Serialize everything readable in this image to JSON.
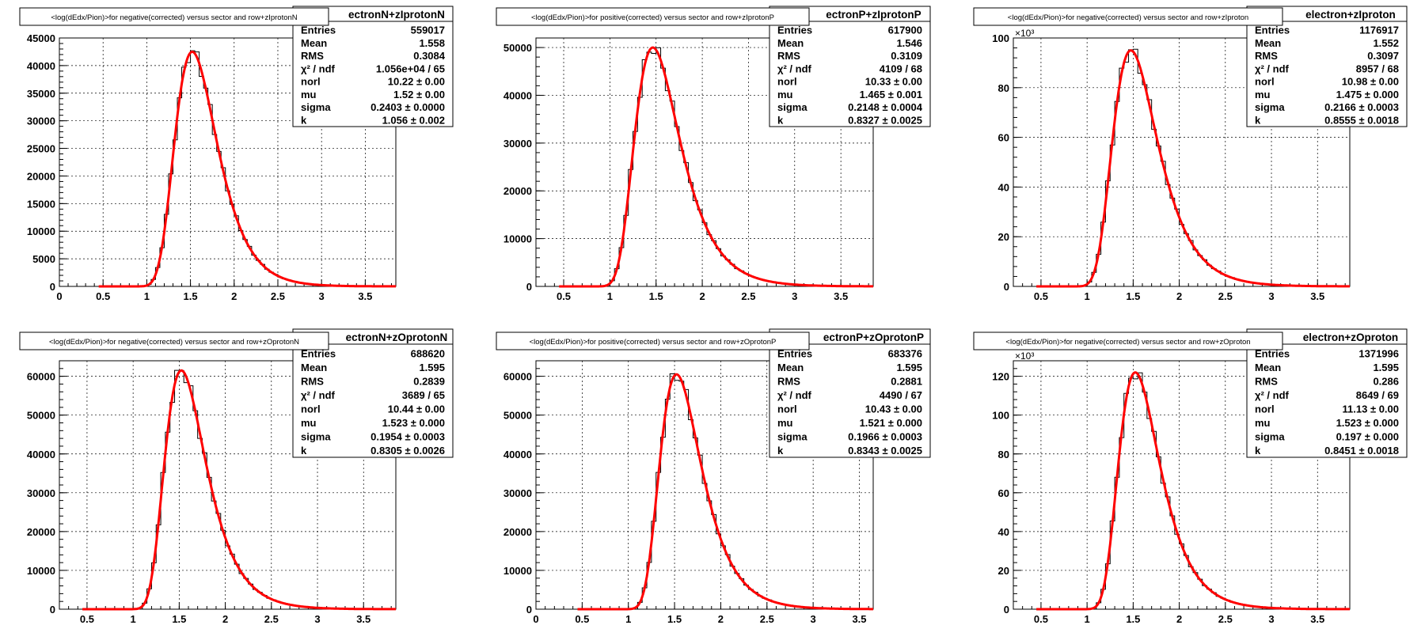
{
  "canvas": {
    "background": "#ffffff"
  },
  "colors": {
    "fit": "#ff0000",
    "hist": "#000000",
    "grid": "#000000"
  },
  "chart_data": [
    {
      "type": "line",
      "title": "<log(dEdx/Pion)>for negative(corrected) versus sector and row+zIprotonN",
      "hist_name": "ectronN+zIprotonN",
      "xlim": [
        0,
        3.85
      ],
      "ylim": [
        0,
        45000
      ],
      "xticks": [
        0,
        0.5,
        1,
        1.5,
        2,
        2.5,
        3,
        3.5
      ],
      "xtick_labels": [
        "0",
        "0.5",
        "1",
        "1.5",
        "2",
        "2.5",
        "3",
        "3.5"
      ],
      "yticks": [
        0,
        5000,
        10000,
        15000,
        20000,
        25000,
        30000,
        35000,
        40000,
        45000
      ],
      "ytick_labels": [
        "0",
        "5000",
        "10000",
        "15000",
        "20000",
        "25000",
        "30000",
        "35000",
        "40000",
        "45000"
      ],
      "y_exponent": "",
      "bin_width": 0.05,
      "fit": {
        "amplitude": 42500,
        "mu": 1.52,
        "sigma": 0.2403,
        "k": 1.056
      },
      "stats": [
        {
          "name": "Entries",
          "value": "559017"
        },
        {
          "name": "Mean",
          "value": "1.558"
        },
        {
          "name": "RMS",
          "value": "0.3084"
        },
        {
          "name": "χ² / ndf",
          "value": "1.056e+04 / 65"
        },
        {
          "name": "norl",
          "value": "10.22 ± 0.00"
        },
        {
          "name": "mu",
          "value": "1.52 ± 0.00"
        },
        {
          "name": "sigma",
          "value": "0.2403 ± 0.0000"
        },
        {
          "name": "k",
          "value": "1.056 ± 0.002"
        }
      ]
    },
    {
      "type": "line",
      "title": "<log(dEdx/Pion)>for positive(corrected) versus sector and row+zIprotonP",
      "hist_name": "ectronP+zIprotonP",
      "xlim": [
        0.2,
        3.85
      ],
      "ylim": [
        0,
        52000
      ],
      "xticks": [
        0.5,
        1,
        1.5,
        2,
        2.5,
        3,
        3.5
      ],
      "xtick_labels": [
        "0.5",
        "1",
        "1.5",
        "2",
        "2.5",
        "3",
        "3.5"
      ],
      "yticks": [
        0,
        10000,
        20000,
        30000,
        40000,
        50000
      ],
      "ytick_labels": [
        "0",
        "10000",
        "20000",
        "30000",
        "40000",
        "50000"
      ],
      "y_exponent": "",
      "bin_width": 0.05,
      "fit": {
        "amplitude": 50000,
        "mu": 1.465,
        "sigma": 0.2148,
        "k": 0.8327
      },
      "stats": [
        {
          "name": "Entries",
          "value": "617900"
        },
        {
          "name": "Mean",
          "value": "1.546"
        },
        {
          "name": "RMS",
          "value": "0.3109"
        },
        {
          "name": "χ² / ndf",
          "value": "4109 / 68"
        },
        {
          "name": "norl",
          "value": "10.33 ± 0.00"
        },
        {
          "name": "mu",
          "value": "1.465 ± 0.001"
        },
        {
          "name": "sigma",
          "value": "0.2148 ± 0.0004"
        },
        {
          "name": "k",
          "value": "0.8327 ± 0.0025"
        }
      ]
    },
    {
      "type": "line",
      "title": "<log(dEdx/Pion)>for negative(corrected) versus sector and row+zIproton",
      "hist_name": "electron+zIproton",
      "xlim": [
        0.2,
        3.85
      ],
      "ylim": [
        0,
        100
      ],
      "xticks": [
        0.5,
        1,
        1.5,
        2,
        2.5,
        3,
        3.5
      ],
      "xtick_labels": [
        "0.5",
        "1",
        "1.5",
        "2",
        "2.5",
        "3",
        "3.5"
      ],
      "yticks": [
        0,
        20,
        40,
        60,
        80,
        100
      ],
      "ytick_labels": [
        "0",
        "20",
        "40",
        "60",
        "80",
        "100"
      ],
      "y_exponent": "×10³",
      "bin_width": 0.05,
      "fit": {
        "amplitude": 95,
        "mu": 1.475,
        "sigma": 0.2166,
        "k": 0.8555
      },
      "stats": [
        {
          "name": "Entries",
          "value": "1176917"
        },
        {
          "name": "Mean",
          "value": "1.552"
        },
        {
          "name": "RMS",
          "value": "0.3097"
        },
        {
          "name": "χ² / ndf",
          "value": "8957 / 68"
        },
        {
          "name": "norl",
          "value": "10.98 ± 0.00"
        },
        {
          "name": "mu",
          "value": "1.475 ± 0.000"
        },
        {
          "name": "sigma",
          "value": "0.2166 ± 0.0003"
        },
        {
          "name": "k",
          "value": "0.8555 ± 0.0018"
        }
      ]
    },
    {
      "type": "line",
      "title": "<log(dEdx/Pion)>for negative(corrected) versus sector and row+zOprotonN",
      "hist_name": "ectronN+zOprotonN",
      "xlim": [
        0.2,
        3.85
      ],
      "ylim": [
        0,
        64000
      ],
      "xticks": [
        0.5,
        1,
        1.5,
        2,
        2.5,
        3,
        3.5
      ],
      "xtick_labels": [
        "0.5",
        "1",
        "1.5",
        "2",
        "2.5",
        "3",
        "3.5"
      ],
      "yticks": [
        0,
        10000,
        20000,
        30000,
        40000,
        50000,
        60000
      ],
      "ytick_labels": [
        "0",
        "10000",
        "20000",
        "30000",
        "40000",
        "50000",
        "60000"
      ],
      "y_exponent": "",
      "bin_width": 0.05,
      "fit": {
        "amplitude": 61500,
        "mu": 1.523,
        "sigma": 0.1954,
        "k": 0.8305
      },
      "stats": [
        {
          "name": "Entries",
          "value": "688620"
        },
        {
          "name": "Mean",
          "value": "1.595"
        },
        {
          "name": "RMS",
          "value": "0.2839"
        },
        {
          "name": "χ² / ndf",
          "value": "3689 / 65"
        },
        {
          "name": "norl",
          "value": "10.44 ± 0.00"
        },
        {
          "name": "mu",
          "value": "1.523 ± 0.000"
        },
        {
          "name": "sigma",
          "value": "0.1954 ± 0.0003"
        },
        {
          "name": "k",
          "value": "0.8305 ± 0.0026"
        }
      ]
    },
    {
      "type": "line",
      "title": "<log(dEdx/Pion)>for positive(corrected) versus sector and row+zOprotonP",
      "hist_name": "ectronP+zOprotonP",
      "xlim": [
        0,
        3.65
      ],
      "ylim": [
        0,
        64000
      ],
      "xticks": [
        0,
        0.5,
        1,
        1.5,
        2,
        2.5,
        3,
        3.5
      ],
      "xtick_labels": [
        "0",
        "0.5",
        "1",
        "1.5",
        "2",
        "2.5",
        "3",
        "3.5"
      ],
      "yticks": [
        0,
        10000,
        20000,
        30000,
        40000,
        50000,
        60000
      ],
      "ytick_labels": [
        "0",
        "10000",
        "20000",
        "30000",
        "40000",
        "50000",
        "60000"
      ],
      "y_exponent": "",
      "bin_width": 0.05,
      "fit": {
        "amplitude": 60500,
        "mu": 1.521,
        "sigma": 0.1966,
        "k": 0.8343
      },
      "stats": [
        {
          "name": "Entries",
          "value": "683376"
        },
        {
          "name": "Mean",
          "value": "1.595"
        },
        {
          "name": "RMS",
          "value": "0.2881"
        },
        {
          "name": "χ² / ndf",
          "value": "4490 / 67"
        },
        {
          "name": "norl",
          "value": "10.43 ± 0.00"
        },
        {
          "name": "mu",
          "value": "1.521 ± 0.000"
        },
        {
          "name": "sigma",
          "value": "0.1966 ± 0.0003"
        },
        {
          "name": "k",
          "value": "0.8343 ± 0.0025"
        }
      ]
    },
    {
      "type": "line",
      "title": "<log(dEdx/Pion)>for negative(corrected) versus sector and row+zOproton",
      "hist_name": "electron+zOproton",
      "xlim": [
        0.2,
        3.85
      ],
      "ylim": [
        0,
        128
      ],
      "xticks": [
        0.5,
        1,
        1.5,
        2,
        2.5,
        3,
        3.5
      ],
      "xtick_labels": [
        "0.5",
        "1",
        "1.5",
        "2",
        "2.5",
        "3",
        "3.5"
      ],
      "yticks": [
        0,
        20,
        40,
        60,
        80,
        100,
        120
      ],
      "ytick_labels": [
        "0",
        "20",
        "40",
        "60",
        "80",
        "100",
        "120"
      ],
      "y_exponent": "×10³",
      "bin_width": 0.05,
      "fit": {
        "amplitude": 122,
        "mu": 1.523,
        "sigma": 0.197,
        "k": 0.8451
      },
      "stats": [
        {
          "name": "Entries",
          "value": "1371996"
        },
        {
          "name": "Mean",
          "value": "1.595"
        },
        {
          "name": "RMS",
          "value": "0.286"
        },
        {
          "name": "χ² / ndf",
          "value": "8649 / 69"
        },
        {
          "name": "norl",
          "value": "11.13 ± 0.00"
        },
        {
          "name": "mu",
          "value": "1.523 ± 0.000"
        },
        {
          "name": "sigma",
          "value": "0.197 ± 0.000"
        },
        {
          "name": "k",
          "value": "0.8451 ± 0.0018"
        }
      ]
    }
  ]
}
